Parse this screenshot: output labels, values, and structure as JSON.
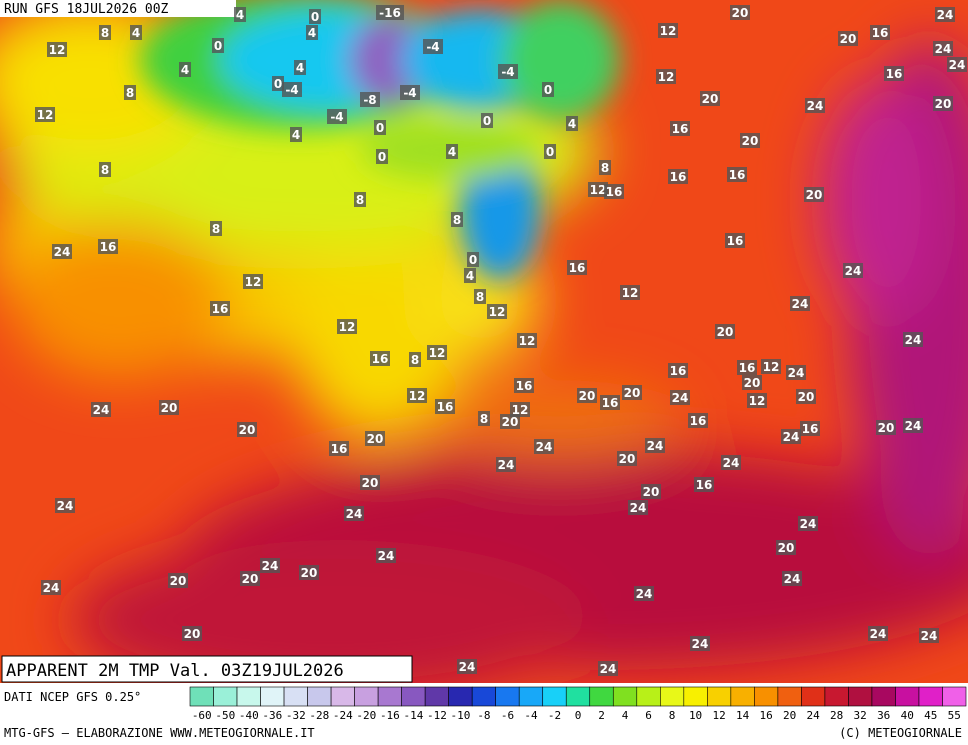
{
  "header": {
    "run": "RUN GFS 18JUL2026 00Z"
  },
  "footer": {
    "title": "APPARENT 2M TMP Val. 03Z19JUL2026",
    "source": "DATI NCEP GFS 0.25°",
    "credit": "MTG-GFS — ELABORAZIONE WWW.METEOGIORNALE.IT",
    "copyright": "(C) METEOGIORNALE"
  },
  "legend": {
    "ticks": [
      -60,
      -50,
      -40,
      -36,
      -32,
      -28,
      -24,
      -20,
      -16,
      -14,
      -12,
      -10,
      -8,
      -6,
      -4,
      -2,
      0,
      2,
      4,
      6,
      8,
      10,
      12,
      14,
      16,
      20,
      24,
      28,
      32,
      36,
      40,
      45,
      55
    ],
    "colors": [
      "#6fe0b8",
      "#9af0d8",
      "#c8f8ec",
      "#e0f4f8",
      "#d8e0f4",
      "#c8c8ec",
      "#d8b8e8",
      "#c8a0e0",
      "#a878d0",
      "#8858c0",
      "#6038a8",
      "#2828b0",
      "#1848d8",
      "#1878f0",
      "#18a8f8",
      "#18d0f8",
      "#20e0a0",
      "#40d840",
      "#80e020",
      "#b8f018",
      "#e8f818",
      "#f8f000",
      "#f8d000",
      "#f8b000",
      "#f89000",
      "#f06010",
      "#e03018",
      "#c81830",
      "#b01040",
      "#a80860",
      "#c810a0",
      "#e020c8",
      "#f060e8"
    ]
  },
  "map_labels": [
    12,
    8,
    4,
    4,
    0,
    -16,
    0,
    4,
    4,
    8,
    12,
    4,
    0,
    -4,
    -4,
    -4,
    0,
    -8,
    -4,
    -4,
    0,
    4,
    0,
    4,
    0,
    4,
    0,
    8,
    8,
    8,
    8,
    8,
    12,
    16,
    24,
    16,
    0,
    4,
    16,
    12,
    8,
    12,
    12,
    16,
    12,
    12,
    16,
    8,
    12,
    20,
    24,
    24,
    24,
    16,
    16,
    16,
    16,
    20,
    20,
    20,
    24,
    20,
    20,
    16,
    24,
    24,
    16,
    20,
    24,
    12,
    12,
    16,
    12,
    16,
    20,
    16,
    20,
    16,
    24,
    16,
    12,
    24,
    20,
    12,
    20,
    16,
    24,
    16,
    20,
    24,
    12,
    8,
    20,
    24,
    24,
    20,
    24,
    24,
    20,
    16,
    24,
    20,
    20,
    20,
    24,
    24,
    16,
    20,
    24,
    24,
    20,
    24,
    24,
    24,
    20,
    20,
    20,
    24,
    24,
    20,
    24,
    24,
    24,
    24,
    24
  ]
}
